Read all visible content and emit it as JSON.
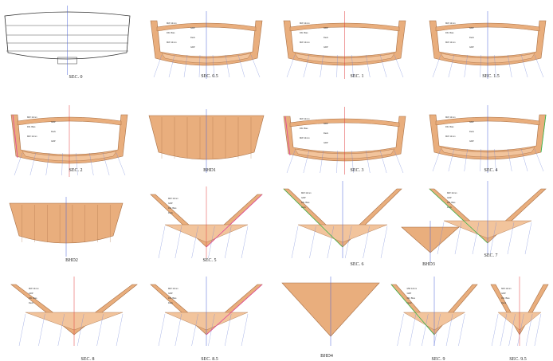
{
  "sheet": {
    "panels": [
      {
        "id": "sec0",
        "label": "SEC. 0",
        "type": "sec0"
      },
      {
        "id": "sec05",
        "label": "SEC. 0.5",
        "type": "flat"
      },
      {
        "id": "sec1",
        "label": "SEC. 1",
        "type": "flat"
      },
      {
        "id": "sec15",
        "label": "SEC. 1.5",
        "type": "flat"
      },
      {
        "id": "sec2",
        "label": "SEC. 2",
        "type": "flat"
      },
      {
        "id": "bhd1",
        "label": "BHD1",
        "type": "bhd"
      },
      {
        "id": "sec3",
        "label": "SEC. 3",
        "type": "flat"
      },
      {
        "id": "sec4",
        "label": "SEC. 4",
        "type": "flat"
      },
      {
        "id": "bhd2",
        "label": "BHD2",
        "type": "bhd"
      },
      {
        "id": "sec5",
        "label": "SEC. 5",
        "type": "v"
      },
      {
        "id": "sec6",
        "label": "SEC. 6",
        "type": "v"
      },
      {
        "id": "bhd3",
        "label": "BHD3",
        "type": "bhdv"
      },
      {
        "id": "sec7",
        "label": "SEC. 7",
        "type": "v"
      },
      {
        "id": "sec8",
        "label": "SEC. 8",
        "type": "v"
      },
      {
        "id": "sec85",
        "label": "SEC. 8.5",
        "type": "v"
      },
      {
        "id": "bhd4",
        "label": "BHD4",
        "type": "bhdv"
      },
      {
        "id": "sec9",
        "label": "SEC. 9",
        "type": "v"
      },
      {
        "id": "sec95",
        "label": "SEC. 9.5",
        "type": "v"
      }
    ],
    "annotation_samples": [
      "MW 12mm",
      "GRP",
      "Dbl. Bias",
      "Deck"
    ],
    "colors": {
      "frame": "#e9ae7d",
      "frame_line": "#a86f44",
      "leader": "#6b7fd6",
      "accent_green": "#39b54a",
      "accent_magenta": "#e0409a",
      "centerline_red": "#e23b3b",
      "centerline_blue": "#4a62d8"
    }
  }
}
